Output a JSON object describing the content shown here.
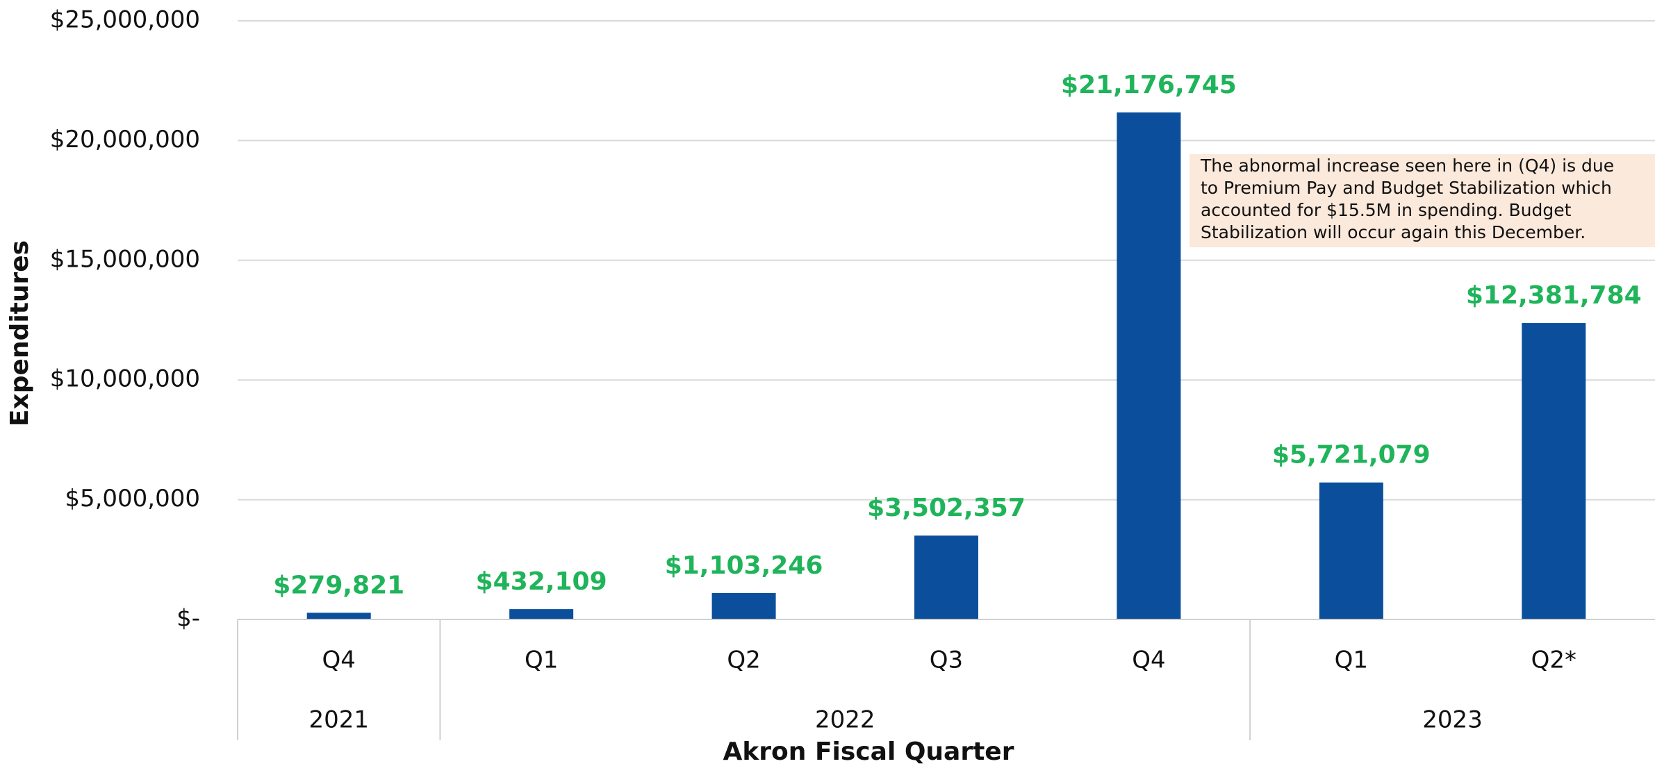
{
  "chart_data": {
    "type": "bar",
    "x_label": "Akron Fiscal Quarter",
    "y_label": "Expenditures",
    "color": "#0b4f9c",
    "value_label_color": "#1fb45a",
    "grid": true,
    "groups": [
      {
        "label": "2021",
        "categories": [
          "Q4"
        ],
        "values": [
          279821
        ],
        "value_labels": [
          "$279,821"
        ]
      },
      {
        "label": "2022",
        "categories": [
          "Q1",
          "Q2",
          "Q3",
          "Q4"
        ],
        "values": [
          432109,
          1103246,
          3502357,
          21176745
        ],
        "value_labels": [
          "$432,109",
          "$1,103,246",
          "$3,502,357",
          "$21,176,745"
        ]
      },
      {
        "label": "2023",
        "categories": [
          "Q1",
          "Q2*"
        ],
        "values": [
          5721079,
          12381784
        ],
        "value_labels": [
          "$5,721,079",
          "$12,381,784"
        ]
      }
    ],
    "ylim": [
      0,
      25000000
    ],
    "yticks": [
      {
        "value": 0,
        "label": "$-"
      },
      {
        "value": 5000000,
        "label": "$5,000,000"
      },
      {
        "value": 10000000,
        "label": "$10,000,000"
      },
      {
        "value": 15000000,
        "label": "$15,000,000"
      },
      {
        "value": 20000000,
        "label": "$20,000,000"
      },
      {
        "value": 25000000,
        "label": "$25,000,000"
      }
    ],
    "annotation": [
      "The abnormal increase seen here in (Q4) is due",
      "to Premium Pay and Budget Stabilization which",
      "accounted for $15.5M in spending. Budget",
      "Stabilization will occur again this December."
    ]
  }
}
